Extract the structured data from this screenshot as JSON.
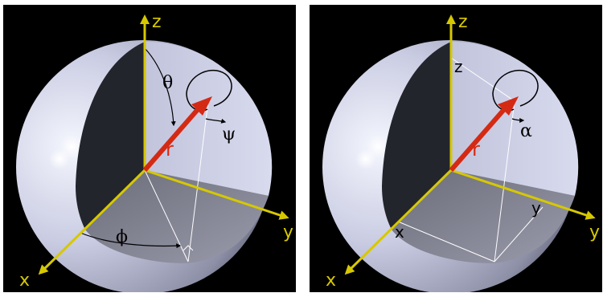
{
  "left": {
    "axis_x": "x",
    "axis_y": "y",
    "axis_z": "z",
    "vector": "r",
    "theta": "θ",
    "phi": "ϕ",
    "psi": "ψ"
  },
  "right": {
    "axis_x": "x",
    "axis_y": "y",
    "axis_z": "z",
    "vector": "r",
    "alpha": "α",
    "proj_x": "x",
    "proj_y": "y",
    "proj_z": "z"
  },
  "colors": {
    "background": "#000000",
    "axis": "#d6c800",
    "vector": "#d42a14",
    "sphere_light": "#d4d6ec",
    "sphere_dark": "#23252c",
    "octant_floor": "#8a8b98",
    "construction_lines": "#ffffff"
  }
}
